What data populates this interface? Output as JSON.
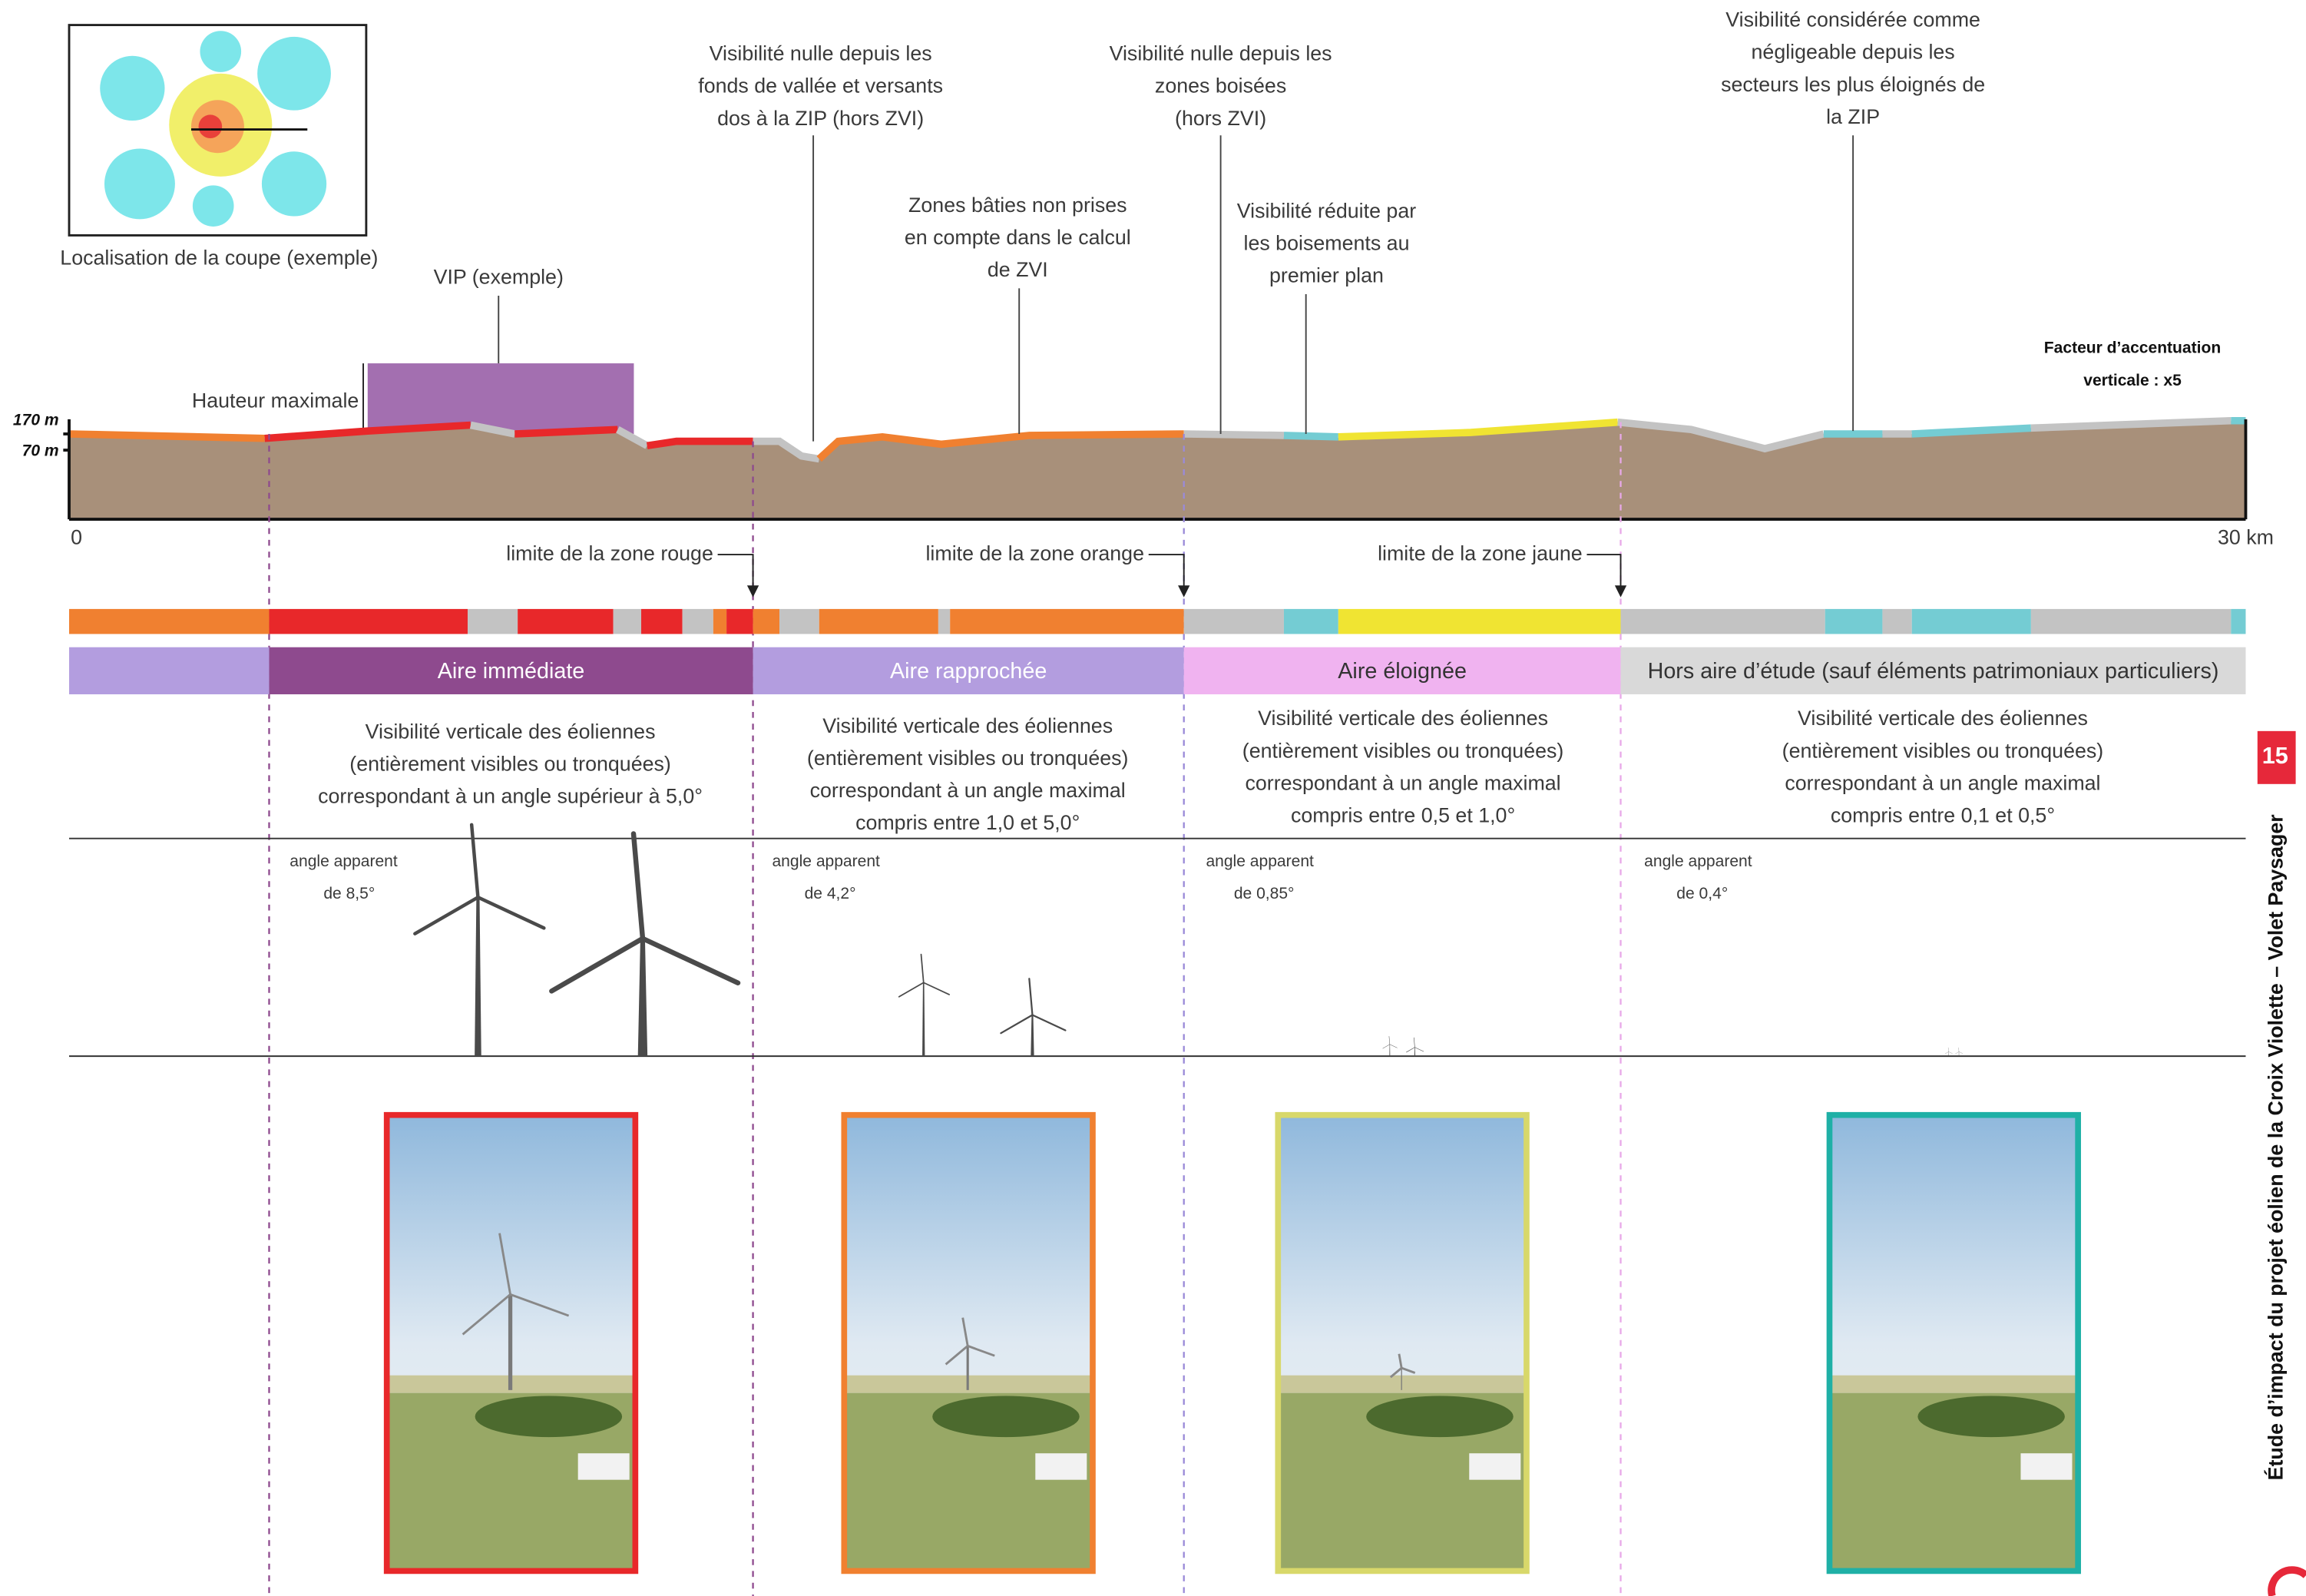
{
  "map_caption": "Localisation de la coupe (exemple)",
  "vip_label": "VIP (exemple)",
  "height_label": "Hauteur maximale",
  "annotations": [
    {
      "lines": [
        "Visibilité nulle depuis les",
        "fonds de vallée et versants",
        "dos à la ZIP (hors ZVI)"
      ]
    },
    {
      "lines": [
        "Zones bâties non prises",
        "en compte dans le calcul",
        "de ZVI"
      ]
    },
    {
      "lines": [
        "Visibilité nulle depuis les",
        "zones boisées",
        "(hors ZVI)"
      ]
    },
    {
      "lines": [
        "Visibilité réduite par",
        "les boisements au",
        "premier plan"
      ]
    },
    {
      "lines": [
        "Visibilité considérée comme",
        "négligeable depuis les",
        "secteurs les plus éloignés de",
        "la ZIP"
      ]
    }
  ],
  "factor": {
    "lines": [
      "Facteur d’accentuation",
      "verticale : x5"
    ]
  },
  "altitudes": [
    "170 m",
    "70 m"
  ],
  "distance": {
    "start": "0",
    "end": "30 km"
  },
  "limits": [
    "limite de la zone rouge",
    "limite de la zone orange",
    "limite de la zone jaune"
  ],
  "areas": [
    "Aire immédiate",
    "Aire rapprochée",
    "Aire éloignée",
    "Hors aire d’étude (sauf éléments patrimoniaux particuliers)"
  ],
  "descriptions": [
    {
      "lines": [
        "Visibilité verticale des éoliennes",
        "(entièrement visibles ou tronquées)",
        "correspondant à un angle supérieur à 5,0°"
      ]
    },
    {
      "lines": [
        "Visibilité verticale des éoliennes",
        "(entièrement visibles ou tronquées)",
        "correspondant à un angle maximal",
        "compris entre 1,0 et 5,0°"
      ]
    },
    {
      "lines": [
        "Visibilité verticale des éoliennes",
        "(entièrement visibles ou tronquées)",
        "correspondant à un angle maximal",
        "compris entre 0,5 et 1,0°"
      ]
    },
    {
      "lines": [
        "Visibilité verticale des éoliennes",
        "(entièrement visibles ou tronquées)",
        "correspondant à un angle maximal",
        "compris entre 0,1 et 0,5°"
      ]
    }
  ],
  "angles": [
    {
      "label": "angle apparent",
      "value": "de 8,5°"
    },
    {
      "label": "angle apparent",
      "value": "de 4,2°"
    },
    {
      "label": "angle apparent",
      "value": "de 0,85°"
    },
    {
      "label": "angle apparent",
      "value": "de 0,4°"
    }
  ],
  "sidebar": {
    "page": "15",
    "title": "Étude d’impact du projet éolien de la Croix Violette – Volet Paysager"
  }
}
